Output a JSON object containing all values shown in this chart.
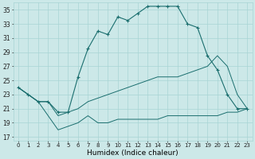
{
  "bg_color": "#cce8e8",
  "grid_color": "#a8d4d4",
  "line_color": "#1a6e6e",
  "xlabel": "Humidex (Indice chaleur)",
  "ylabel_ticks": [
    17,
    19,
    21,
    23,
    25,
    27,
    29,
    31,
    33,
    35
  ],
  "xlabel_ticks": [
    0,
    1,
    2,
    3,
    4,
    5,
    6,
    7,
    8,
    9,
    10,
    11,
    12,
    13,
    14,
    15,
    16,
    17,
    18,
    19,
    20,
    21,
    22,
    23
  ],
  "xlim": [
    -0.5,
    23.5
  ],
  "ylim": [
    16.5,
    36.0
  ],
  "series1_x": [
    0,
    1,
    2,
    3,
    4,
    5,
    6,
    7,
    8,
    9,
    10,
    11,
    12,
    13,
    14,
    15,
    16,
    17,
    18,
    19,
    20,
    21,
    22,
    23
  ],
  "series1_y": [
    24.0,
    23.0,
    22.0,
    22.0,
    20.5,
    20.5,
    25.5,
    29.5,
    32.0,
    31.5,
    34.0,
    33.5,
    34.5,
    35.5,
    35.5,
    35.5,
    35.5,
    33.0,
    32.5,
    28.5,
    26.5,
    23.0,
    21.0,
    21.0
  ],
  "series2_x": [
    0,
    1,
    2,
    3,
    4,
    5,
    6,
    7,
    8,
    9,
    10,
    11,
    12,
    13,
    14,
    15,
    16,
    17,
    18,
    19,
    20,
    21,
    22,
    23
  ],
  "series2_y": [
    24.0,
    23.0,
    22.0,
    22.0,
    20.0,
    20.5,
    21.0,
    22.0,
    22.5,
    23.0,
    23.5,
    24.0,
    24.5,
    25.0,
    25.5,
    25.5,
    25.5,
    26.0,
    26.5,
    27.0,
    28.5,
    27.0,
    23.0,
    21.0
  ],
  "series3_x": [
    0,
    1,
    2,
    3,
    4,
    5,
    6,
    7,
    8,
    9,
    10,
    11,
    12,
    13,
    14,
    15,
    16,
    17,
    18,
    19,
    20,
    21,
    22,
    23
  ],
  "series3_y": [
    24.0,
    23.0,
    22.0,
    20.0,
    18.0,
    18.5,
    19.0,
    20.0,
    19.0,
    19.0,
    19.5,
    19.5,
    19.5,
    19.5,
    19.5,
    20.0,
    20.0,
    20.0,
    20.0,
    20.0,
    20.0,
    20.5,
    20.5,
    21.0
  ]
}
